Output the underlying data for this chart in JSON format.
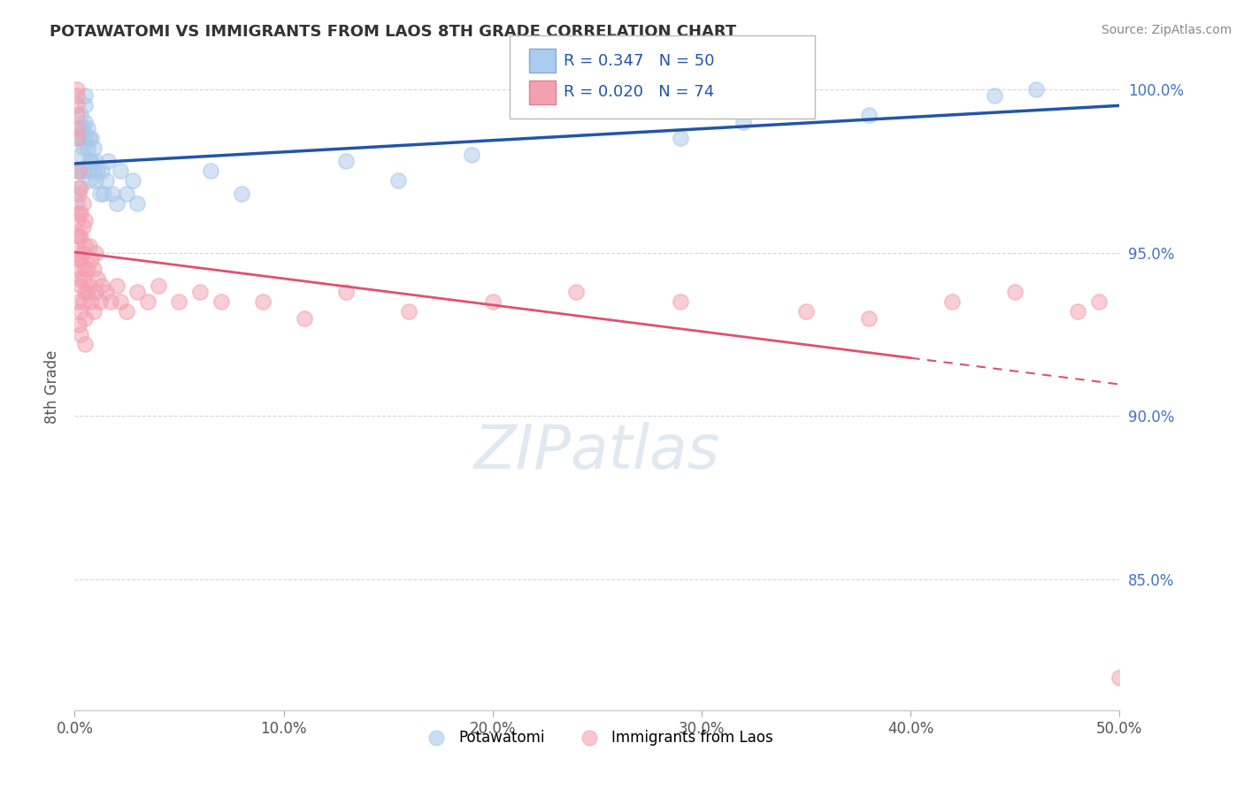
{
  "title": "POTAWATOMI VS IMMIGRANTS FROM LAOS 8TH GRADE CORRELATION CHART",
  "source": "Source: ZipAtlas.com",
  "ylabel": "8th Grade",
  "xlim": [
    0.0,
    0.5
  ],
  "ylim": [
    0.81,
    1.008
  ],
  "xticks": [
    0.0,
    0.1,
    0.2,
    0.3,
    0.4,
    0.5
  ],
  "xtick_labels": [
    "0.0%",
    "10.0%",
    "20.0%",
    "30.0%",
    "40.0%",
    "50.0%"
  ],
  "yticks": [
    0.85,
    0.9,
    0.95,
    1.0
  ],
  "ytick_labels": [
    "85.0%",
    "90.0%",
    "95.0%",
    "100.0%"
  ],
  "legend_R1": "0.347",
  "legend_N1": "50",
  "legend_R2": "0.020",
  "legend_N2": "74",
  "blue_color": "#a8c8e8",
  "pink_color": "#f4a0b0",
  "blue_line_color": "#2255aa",
  "pink_line_color": "#e05070",
  "grid_color": "#cccccc",
  "potawatomi_x": [
    0.001,
    0.001,
    0.002,
    0.002,
    0.002,
    0.003,
    0.003,
    0.003,
    0.003,
    0.004,
    0.004,
    0.004,
    0.005,
    0.005,
    0.005,
    0.005,
    0.006,
    0.006,
    0.006,
    0.007,
    0.007,
    0.007,
    0.008,
    0.008,
    0.009,
    0.009,
    0.01,
    0.01,
    0.011,
    0.012,
    0.013,
    0.014,
    0.015,
    0.016,
    0.018,
    0.02,
    0.022,
    0.025,
    0.028,
    0.03,
    0.065,
    0.08,
    0.13,
    0.155,
    0.19,
    0.29,
    0.32,
    0.38,
    0.44,
    0.46
  ],
  "potawatomi_y": [
    0.975,
    0.965,
    0.985,
    0.975,
    0.97,
    0.992,
    0.988,
    0.985,
    0.98,
    0.988,
    0.982,
    0.975,
    0.998,
    0.995,
    0.99,
    0.985,
    0.988,
    0.982,
    0.975,
    0.985,
    0.978,
    0.972,
    0.985,
    0.978,
    0.982,
    0.975,
    0.978,
    0.972,
    0.975,
    0.968,
    0.975,
    0.968,
    0.972,
    0.978,
    0.968,
    0.965,
    0.975,
    0.968,
    0.972,
    0.965,
    0.975,
    0.968,
    0.978,
    0.972,
    0.98,
    0.985,
    0.99,
    0.992,
    0.998,
    1.0
  ],
  "laos_x": [
    0.001,
    0.001,
    0.001,
    0.001,
    0.001,
    0.001,
    0.001,
    0.001,
    0.001,
    0.001,
    0.002,
    0.002,
    0.002,
    0.002,
    0.002,
    0.002,
    0.002,
    0.002,
    0.003,
    0.003,
    0.003,
    0.003,
    0.003,
    0.003,
    0.003,
    0.004,
    0.004,
    0.004,
    0.004,
    0.004,
    0.005,
    0.005,
    0.005,
    0.005,
    0.005,
    0.005,
    0.006,
    0.006,
    0.007,
    0.007,
    0.008,
    0.008,
    0.009,
    0.009,
    0.01,
    0.01,
    0.011,
    0.012,
    0.013,
    0.015,
    0.017,
    0.02,
    0.022,
    0.025,
    0.03,
    0.035,
    0.04,
    0.05,
    0.06,
    0.07,
    0.09,
    0.11,
    0.13,
    0.16,
    0.2,
    0.24,
    0.29,
    0.35,
    0.38,
    0.42,
    0.45,
    0.48,
    0.49,
    0.5
  ],
  "laos_y": [
    1.0,
    0.998,
    0.995,
    0.992,
    0.988,
    0.985,
    0.96,
    0.955,
    0.95,
    0.945,
    0.975,
    0.968,
    0.962,
    0.955,
    0.948,
    0.942,
    0.935,
    0.928,
    0.97,
    0.962,
    0.955,
    0.948,
    0.94,
    0.932,
    0.925,
    0.965,
    0.958,
    0.95,
    0.942,
    0.935,
    0.96,
    0.952,
    0.945,
    0.938,
    0.93,
    0.922,
    0.945,
    0.938,
    0.952,
    0.94,
    0.948,
    0.935,
    0.945,
    0.932,
    0.95,
    0.938,
    0.942,
    0.935,
    0.94,
    0.938,
    0.935,
    0.94,
    0.935,
    0.932,
    0.938,
    0.935,
    0.94,
    0.935,
    0.938,
    0.935,
    0.935,
    0.93,
    0.938,
    0.932,
    0.935,
    0.938,
    0.935,
    0.932,
    0.93,
    0.935,
    0.938,
    0.932,
    0.935,
    0.82
  ]
}
